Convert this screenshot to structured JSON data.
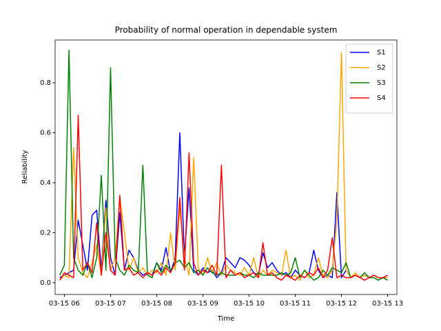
{
  "chart_data": {
    "type": "line",
    "title": "Probability of normal operation in dependable system",
    "x_label": "Time",
    "y_label": "Reliability",
    "x": [
      5.9,
      6.0,
      6.1,
      6.2,
      6.3,
      6.4,
      6.5,
      6.6,
      6.7,
      6.8,
      6.9,
      7.0,
      7.1,
      7.2,
      7.3,
      7.4,
      7.5,
      7.6,
      7.7,
      7.8,
      7.9,
      8.0,
      8.1,
      8.2,
      8.3,
      8.4,
      8.5,
      8.6,
      8.7,
      8.8,
      8.9,
      9.0,
      9.1,
      9.2,
      9.3,
      9.4,
      9.5,
      9.6,
      9.7,
      9.8,
      9.9,
      10.0,
      10.1,
      10.2,
      10.3,
      10.4,
      10.5,
      10.6,
      10.7,
      10.8,
      10.9,
      11.0,
      11.1,
      11.2,
      11.3,
      11.4,
      11.5,
      11.6,
      11.7,
      11.8,
      11.9,
      12.0,
      12.1,
      12.2,
      12.3,
      12.4,
      12.5,
      12.6,
      12.7,
      12.8,
      12.9,
      13.0
    ],
    "series": [
      {
        "name": "S1",
        "color": "#0000ff",
        "values": [
          0.02,
          0.03,
          0.04,
          0.05,
          0.25,
          0.15,
          0.05,
          0.27,
          0.29,
          0.05,
          0.33,
          0.1,
          0.03,
          0.28,
          0.05,
          0.13,
          0.1,
          0.05,
          0.03,
          0.04,
          0.03,
          0.08,
          0.05,
          0.14,
          0.04,
          0.1,
          0.6,
          0.1,
          0.38,
          0.05,
          0.03,
          0.06,
          0.04,
          0.05,
          0.02,
          0.04,
          0.1,
          0.08,
          0.06,
          0.1,
          0.09,
          0.07,
          0.04,
          0.03,
          0.12,
          0.06,
          0.08,
          0.05,
          0.03,
          0.04,
          0.02,
          0.05,
          0.03,
          0.02,
          0.04,
          0.13,
          0.05,
          0.02,
          0.03,
          0.02,
          0.36,
          0.02,
          0.05,
          0.02,
          0.03,
          0.02,
          0.03,
          0.02,
          0.03,
          0.02,
          0.02,
          0.03
        ]
      },
      {
        "name": "S2",
        "color": "#ffa500",
        "values": [
          0.01,
          0.03,
          0.02,
          0.54,
          0.1,
          0.04,
          0.02,
          0.08,
          0.15,
          0.03,
          0.3,
          0.05,
          0.1,
          0.34,
          0.2,
          0.05,
          0.1,
          0.04,
          0.06,
          0.03,
          0.05,
          0.04,
          0.08,
          0.03,
          0.2,
          0.05,
          0.3,
          0.1,
          0.03,
          0.5,
          0.06,
          0.03,
          0.1,
          0.04,
          0.08,
          0.03,
          0.07,
          0.05,
          0.04,
          0.03,
          0.06,
          0.03,
          0.1,
          0.02,
          0.05,
          0.03,
          0.05,
          0.04,
          0.03,
          0.13,
          0.02,
          0.03,
          0.01,
          0.05,
          0.02,
          0.03,
          0.1,
          0.03,
          0.02,
          0.05,
          0.25,
          0.92,
          0.05,
          0.02,
          0.04,
          0.02,
          0.03,
          0.02,
          0.03,
          0.02,
          0.02,
          0.02
        ]
      },
      {
        "name": "S3",
        "color": "#008000",
        "values": [
          0.03,
          0.07,
          0.93,
          0.1,
          0.05,
          0.03,
          0.08,
          0.02,
          0.1,
          0.43,
          0.05,
          0.86,
          0.1,
          0.05,
          0.03,
          0.07,
          0.05,
          0.04,
          0.47,
          0.03,
          0.02,
          0.08,
          0.04,
          0.07,
          0.05,
          0.08,
          0.09,
          0.06,
          0.08,
          0.04,
          0.05,
          0.03,
          0.06,
          0.04,
          0.03,
          0.04,
          0.03,
          0.03,
          0.03,
          0.04,
          0.03,
          0.03,
          0.02,
          0.04,
          0.03,
          0.03,
          0.03,
          0.03,
          0.04,
          0.03,
          0.04,
          0.1,
          0.02,
          0.05,
          0.03,
          0.01,
          0.02,
          0.05,
          0.03,
          0.06,
          0.05,
          0.04,
          0.08,
          0.02,
          0.03,
          0.02,
          0.04,
          0.02,
          0.02,
          0.01,
          0.02,
          0.01
        ]
      },
      {
        "name": "S4",
        "color": "#ff0000",
        "values": [
          0.01,
          0.04,
          0.03,
          0.02,
          0.67,
          0.05,
          0.08,
          0.04,
          0.24,
          0.03,
          0.2,
          0.05,
          0.03,
          0.35,
          0.05,
          0.06,
          0.03,
          0.04,
          0.02,
          0.04,
          0.03,
          0.05,
          0.03,
          0.06,
          0.04,
          0.08,
          0.34,
          0.05,
          0.52,
          0.08,
          0.03,
          0.05,
          0.04,
          0.07,
          0.03,
          0.47,
          0.02,
          0.05,
          0.03,
          0.04,
          0.02,
          0.03,
          0.04,
          0.02,
          0.16,
          0.03,
          0.04,
          0.02,
          0.01,
          0.03,
          0.02,
          0.01,
          0.03,
          0.02,
          0.04,
          0.03,
          0.06,
          0.02,
          0.05,
          0.18,
          0.02,
          0.03,
          0.02,
          0.02,
          0.03,
          0.02,
          0.01,
          0.02,
          0.03,
          0.02,
          0.02,
          0.03
        ]
      }
    ],
    "xlim": [
      5.8,
      13.2
    ],
    "xticks": [
      {
        "value": 6,
        "label": "03-15 06"
      },
      {
        "value": 7,
        "label": "03-15 07"
      },
      {
        "value": 8,
        "label": "03-15 08"
      },
      {
        "value": 9,
        "label": "03-15 09"
      },
      {
        "value": 10,
        "label": "03-15 10"
      },
      {
        "value": 11,
        "label": "03-15 11"
      },
      {
        "value": 12,
        "label": "03-15 12"
      },
      {
        "value": 13,
        "label": "03-15 13"
      }
    ],
    "ylim": [
      -0.047,
      0.971
    ],
    "yticks": [
      {
        "value": 0,
        "label": "0.0"
      },
      0.2,
      0.4,
      0.6,
      0.8
    ],
    "legend": "upper right",
    "grid": false
  }
}
